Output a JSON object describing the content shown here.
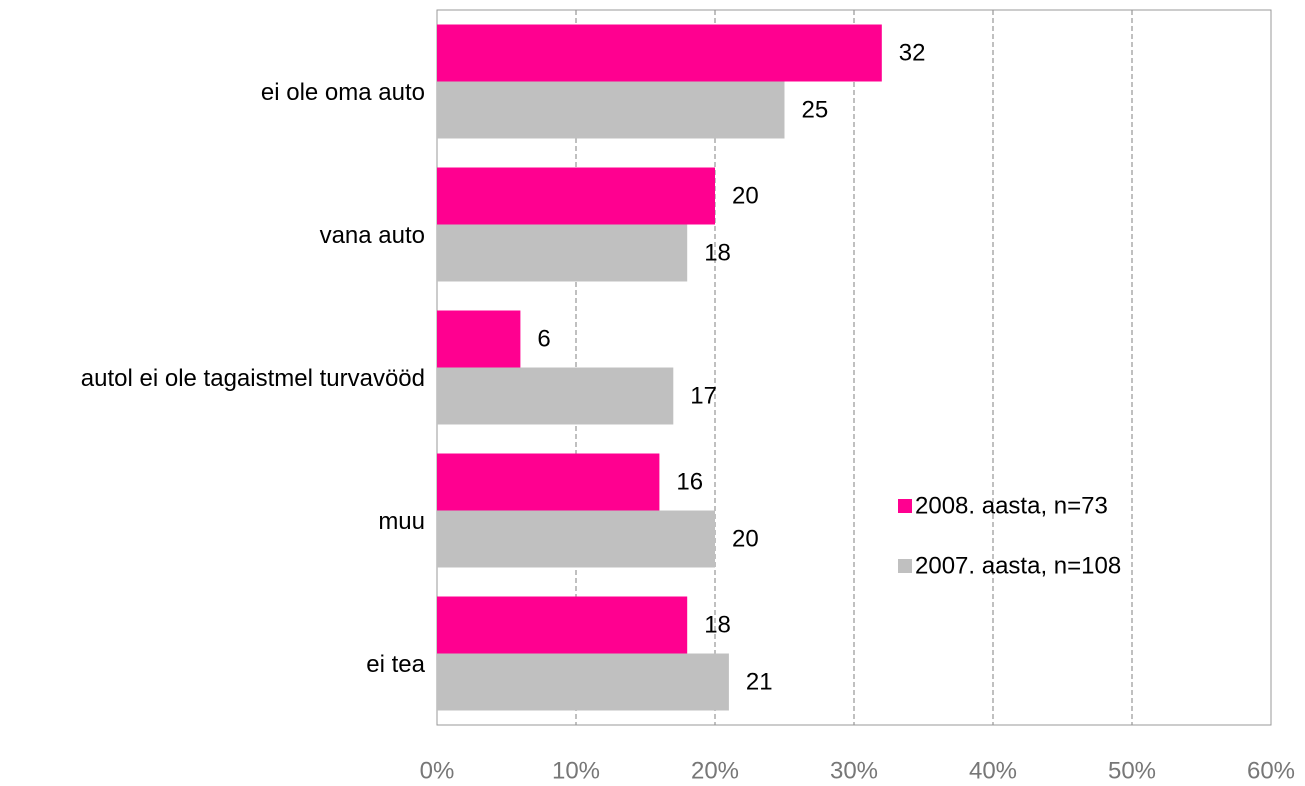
{
  "chart_data": {
    "type": "bar",
    "orientation": "horizontal",
    "categories": [
      "ei ole oma auto",
      "vana auto",
      "autol ei ole tagaistmel turvavööd",
      "muu",
      "ei tea"
    ],
    "series": [
      {
        "name": "2008. aasta, n=73",
        "color": "#ff0090",
        "values": [
          32,
          20,
          6,
          16,
          18
        ]
      },
      {
        "name": "2007. aasta, n=108",
        "color": "#c0c0c0",
        "values": [
          25,
          18,
          17,
          20,
          21
        ]
      }
    ],
    "xlim": [
      0,
      60
    ],
    "xticks": [
      {
        "value": 0,
        "label": "0%"
      },
      {
        "value": 10,
        "label": "10%"
      },
      {
        "value": 20,
        "label": "20%"
      },
      {
        "value": 30,
        "label": "30%"
      },
      {
        "value": 40,
        "label": "40%"
      },
      {
        "value": 50,
        "label": "50%"
      },
      {
        "value": 60,
        "label": "60%"
      }
    ],
    "grid": true,
    "legend": "right"
  }
}
